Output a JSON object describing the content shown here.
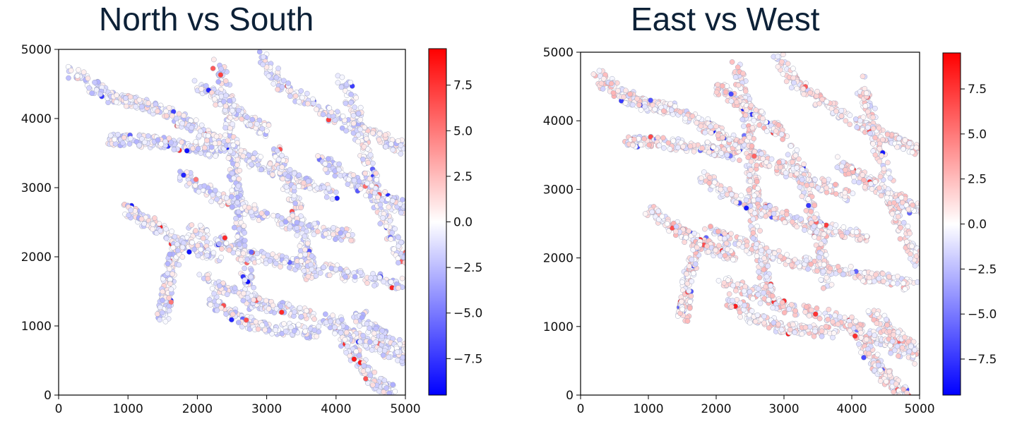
{
  "chart_data": [
    {
      "type": "scatter",
      "title": "North vs South",
      "xlabel": "",
      "ylabel": "",
      "xlim": [
        0,
        5000
      ],
      "ylim": [
        0,
        5000
      ],
      "xticks": [
        "0",
        "1000",
        "2000",
        "3000",
        "4000",
        "5000"
      ],
      "yticks": [
        "0",
        "1000",
        "2000",
        "3000",
        "4000",
        "5000"
      ],
      "colorbar": {
        "colormap": "bwr",
        "range": [
          -9.5,
          9.5
        ],
        "ticks": [
          "7.5",
          "5.0",
          "2.5",
          "0.0",
          "−2.5",
          "−5.0",
          "−7.5"
        ],
        "tick_values": [
          7.5,
          5.0,
          2.5,
          0.0,
          -2.5,
          -5.0,
          -7.5
        ],
        "colors": {
          "low": "#0000ff",
          "mid": "#ffffff",
          "high": "#ff0000"
        }
      },
      "grid": false,
      "bias": -0.6,
      "seed": 11
    },
    {
      "type": "scatter",
      "title": "East vs West",
      "xlabel": "",
      "ylabel": "",
      "xlim": [
        0,
        5000
      ],
      "ylim": [
        0,
        5000
      ],
      "xticks": [
        "0",
        "1000",
        "2000",
        "3000",
        "4000",
        "5000"
      ],
      "yticks": [
        "0",
        "1000",
        "2000",
        "3000",
        "4000",
        "5000"
      ],
      "colorbar": {
        "colormap": "bwr",
        "range": [
          -9.5,
          9.5
        ],
        "ticks": [
          "7.5",
          "5.0",
          "2.5",
          "0.0",
          "−2.5",
          "−5.0",
          "−7.5"
        ],
        "tick_values": [
          7.5,
          5.0,
          2.5,
          0.0,
          -2.5,
          -5.0,
          -7.5
        ],
        "colors": {
          "low": "#0000ff",
          "mid": "#ffffff",
          "high": "#ff0000"
        }
      },
      "grid": false,
      "bias": 0.6,
      "seed": 29
    }
  ]
}
